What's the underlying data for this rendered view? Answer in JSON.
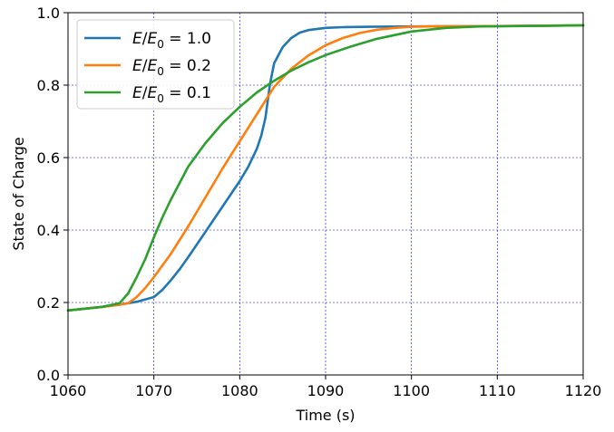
{
  "chart_data": {
    "type": "line",
    "xlabel": "Time (s)",
    "ylabel": "State of Charge",
    "xlim": [
      1060,
      1120
    ],
    "ylim": [
      0.0,
      1.0
    ],
    "xticks": [
      1060,
      1070,
      1080,
      1090,
      1100,
      1110,
      1120
    ],
    "xtick_labels": [
      "1060",
      "1070",
      "1080",
      "1090",
      "1100",
      "1110",
      "1120"
    ],
    "yticks": [
      0.0,
      0.2,
      0.4,
      0.6,
      0.8,
      1.0
    ],
    "ytick_labels": [
      "0.0",
      "0.2",
      "0.4",
      "0.6",
      "0.8",
      "1.0"
    ],
    "grid": true,
    "legend_position": "top-left",
    "series": [
      {
        "name": "E/E₀ = 1.0",
        "legend_parts": [
          "E",
          "/",
          "E",
          "0",
          "= 1.0"
        ],
        "color": "#1f77b4",
        "x": [
          1060,
          1062,
          1064,
          1066,
          1068,
          1070,
          1071,
          1072,
          1073,
          1074,
          1075,
          1076,
          1078,
          1080,
          1081,
          1082,
          1082.5,
          1083,
          1083.5,
          1084,
          1085,
          1086,
          1087,
          1088,
          1090,
          1092,
          1095,
          1100,
          1110,
          1120
        ],
        "y": [
          0.178,
          0.183,
          0.188,
          0.194,
          0.202,
          0.215,
          0.235,
          0.262,
          0.292,
          0.325,
          0.36,
          0.395,
          0.465,
          0.535,
          0.575,
          0.625,
          0.66,
          0.71,
          0.8,
          0.86,
          0.905,
          0.93,
          0.945,
          0.952,
          0.958,
          0.96,
          0.961,
          0.962,
          0.963,
          0.965
        ]
      },
      {
        "name": "E/E₀ = 0.2",
        "legend_parts": [
          "E",
          "/",
          "E",
          "0",
          "= 0.2"
        ],
        "color": "#ff7f0e",
        "x": [
          1060,
          1062,
          1064,
          1066,
          1067,
          1068,
          1069,
          1070,
          1072,
          1074,
          1076,
          1078,
          1080,
          1082,
          1084,
          1086,
          1088,
          1090,
          1092,
          1094,
          1096,
          1098,
          1100,
          1102,
          1105,
          1110,
          1120
        ],
        "y": [
          0.178,
          0.183,
          0.188,
          0.194,
          0.198,
          0.215,
          0.24,
          0.27,
          0.335,
          0.41,
          0.49,
          0.57,
          0.645,
          0.72,
          0.795,
          0.845,
          0.882,
          0.91,
          0.93,
          0.944,
          0.953,
          0.958,
          0.961,
          0.962,
          0.963,
          0.963,
          0.965
        ]
      },
      {
        "name": "E/E₀ = 0.1",
        "legend_parts": [
          "E",
          "/",
          "E",
          "0",
          "= 0.1"
        ],
        "color": "#2ca02c",
        "x": [
          1060,
          1062,
          1064,
          1066,
          1067,
          1068,
          1069,
          1070,
          1071,
          1072,
          1073,
          1074,
          1076,
          1078,
          1080,
          1082,
          1084,
          1086,
          1088,
          1090,
          1093,
          1096,
          1100,
          1104,
          1108,
          1112,
          1116,
          1120
        ],
        "y": [
          0.178,
          0.183,
          0.188,
          0.198,
          0.225,
          0.27,
          0.32,
          0.38,
          0.435,
          0.485,
          0.53,
          0.575,
          0.64,
          0.695,
          0.74,
          0.78,
          0.812,
          0.84,
          0.863,
          0.883,
          0.907,
          0.928,
          0.948,
          0.958,
          0.962,
          0.963,
          0.964,
          0.965
        ]
      }
    ]
  }
}
